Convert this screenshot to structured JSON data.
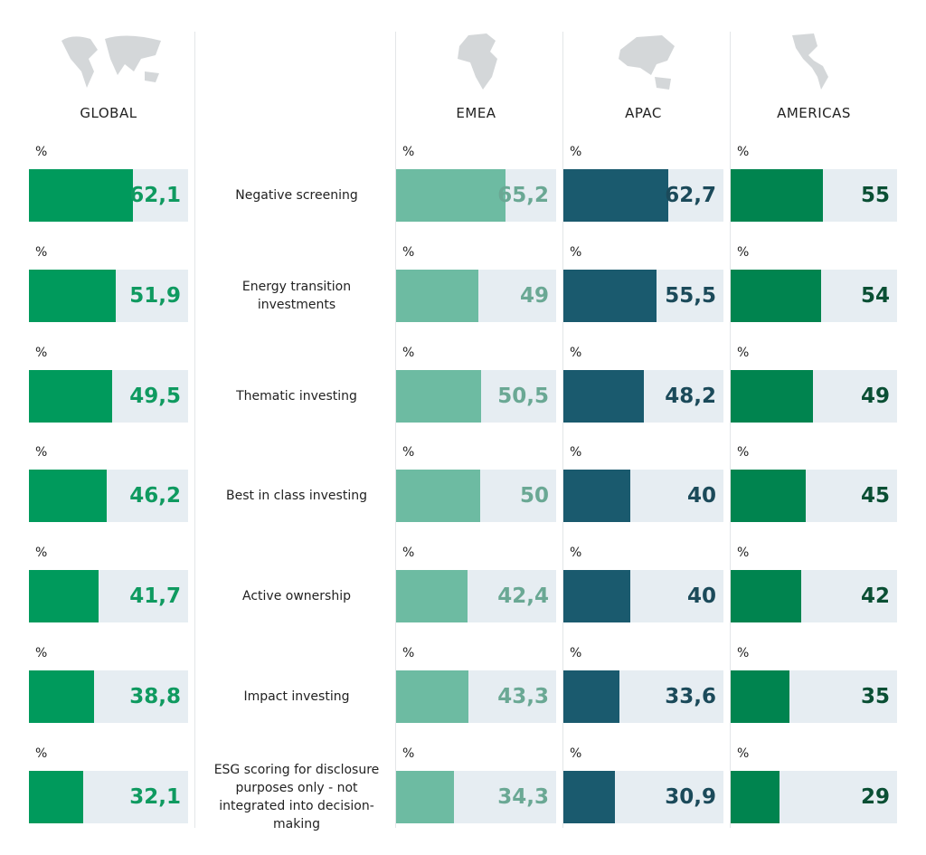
{
  "chart_data": {
    "type": "bar",
    "categories": [
      "Negative screening",
      "Energy transition investments",
      "Thematic investing",
      "Best in class investing",
      "Active ownership",
      "Impact investing",
      "ESG scoring for disclosure purposes only - not integrated into decision-making"
    ],
    "unit": "%",
    "xlim": [
      0,
      96
    ],
    "series": [
      {
        "name": "GLOBAL",
        "color": "#009a5c",
        "label_color": "#0f9a60",
        "values": [
          62.1,
          51.9,
          49.5,
          46.2,
          41.7,
          38.8,
          32.1
        ],
        "value_labels": [
          "62,1",
          "51,9",
          "49,5",
          "46,2",
          "41,7",
          "38,8",
          "32,1"
        ]
      },
      {
        "name": "EMEA",
        "color": "#6dbba2",
        "label_color": "#6aa894",
        "values": [
          65.2,
          49,
          50.5,
          50,
          42.4,
          43.3,
          34.3
        ],
        "value_labels": [
          "65,2",
          "49",
          "50,5",
          "50",
          "42,4",
          "43,3",
          "34,3"
        ]
      },
      {
        "name": "APAC",
        "color": "#1a5a6e",
        "label_color": "#1b4a5a",
        "values": [
          62.7,
          55.5,
          48.2,
          40,
          40,
          33.6,
          30.9
        ],
        "value_labels": [
          "62,7",
          "55,5",
          "48,2",
          "40",
          "40",
          "33,6",
          "30,9"
        ]
      },
      {
        "name": "AMERICAS",
        "color": "#00844f",
        "label_color": "#0a4f34",
        "values": [
          55,
          54,
          49,
          45,
          42,
          35,
          29
        ],
        "value_labels": [
          "55",
          "54",
          "49",
          "45",
          "42",
          "35",
          "29"
        ]
      }
    ]
  }
}
